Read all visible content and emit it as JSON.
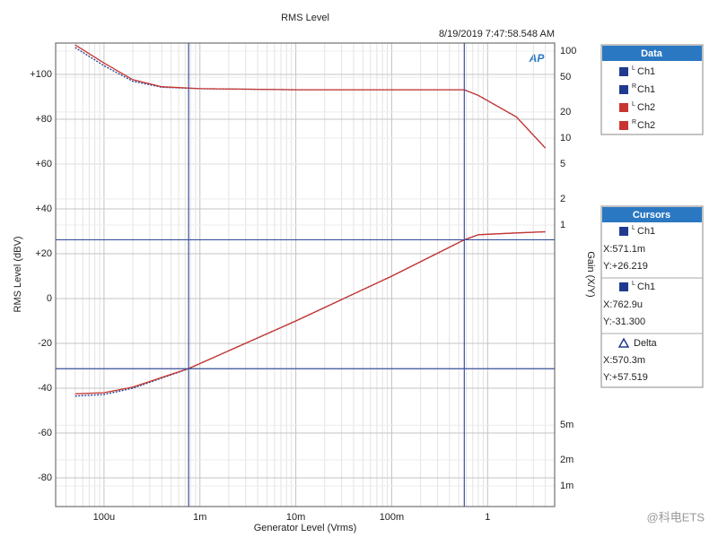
{
  "chart_data": {
    "type": "line",
    "title": "RMS Level",
    "timestamp": "8/19/2019 7:47:58.548 AM",
    "logo": "AP",
    "x_label": "Generator Level (Vrms)",
    "y_label": "RMS Level (dBV)",
    "y2_label": "Gain (X/Y)",
    "x_log": true,
    "y2_log": true,
    "grid": true,
    "xlim": [
      3.13e-05,
      5
    ],
    "ylim": [
      -92.8,
      114
    ],
    "y2lim": [
      0.00058,
      124
    ],
    "xticks": [
      {
        "value": 0.0001,
        "label": "100u"
      },
      {
        "value": 0.001,
        "label": "1m"
      },
      {
        "value": 0.01,
        "label": "10m"
      },
      {
        "value": 0.1,
        "label": "100m"
      },
      1
    ],
    "yticks": [
      -80,
      -60,
      -40,
      -20,
      0,
      {
        "value": 20,
        "label": "+20"
      },
      {
        "value": 40,
        "label": "+40"
      },
      {
        "value": 60,
        "label": "+60"
      },
      {
        "value": 80,
        "label": "+80"
      },
      {
        "value": 100,
        "label": "+100"
      }
    ],
    "y2ticks": [
      {
        "value": 0.001,
        "label": "1m"
      },
      {
        "value": 0.002,
        "label": "2m"
      },
      {
        "value": 0.005,
        "label": "5m"
      },
      1,
      2,
      5,
      10,
      20,
      50,
      100
    ],
    "legend_title": "Data",
    "series": [
      {
        "name": "Ch1",
        "channel": "L",
        "color": "#1f3a8f",
        "dash": true,
        "x": [
          5e-05,
          0.0001,
          0.0002,
          0.0004,
          0.000763,
          0.001,
          0.01,
          0.1,
          0.5711,
          0.8,
          2,
          4
        ],
        "values": [
          -43.5,
          -42.8,
          -40,
          -35.5,
          -31.3,
          -29,
          -10,
          10,
          26.2,
          28.5,
          29.3,
          29.8
        ]
      },
      {
        "name": "Ch1",
        "channel": "R",
        "color": "#1f3a8f",
        "dash": true,
        "axis": "y2",
        "x": [
          5e-05,
          0.0001,
          0.0002,
          0.0004,
          0.001,
          0.01,
          0.1,
          0.5711,
          0.8,
          2,
          4
        ],
        "values": [
          110,
          68,
          45,
          38.5,
          37,
          36,
          36,
          36,
          31,
          17.5,
          7.7
        ]
      },
      {
        "name": "Ch2",
        "channel": "L",
        "color": "#c8352f",
        "dash": false,
        "x": [
          5e-05,
          0.0001,
          0.0002,
          0.0004,
          0.000763,
          0.001,
          0.01,
          0.1,
          0.5711,
          0.8,
          2,
          4
        ],
        "values": [
          -42.5,
          -42,
          -39.5,
          -35.2,
          -31.2,
          -29,
          -10,
          10,
          26.2,
          28.5,
          29.3,
          29.8
        ]
      },
      {
        "name": "Ch2",
        "channel": "R",
        "color": "#c8352f",
        "dash": false,
        "axis": "y2",
        "x": [
          5e-05,
          0.0001,
          0.0002,
          0.0004,
          0.001,
          0.01,
          0.1,
          0.5711,
          0.8,
          2,
          4
        ],
        "values": [
          118,
          73,
          47,
          39,
          37,
          36,
          36,
          36,
          31,
          17.5,
          7.7
        ]
      }
    ],
    "cursors_title": "Cursors",
    "cursors": [
      {
        "name": "Ch1",
        "channel": "L",
        "color": "#1f3a8f",
        "x": {
          "value": 0.5711,
          "label": "X:571.1m"
        },
        "y": {
          "value": 26.219,
          "label": "Y:+26.219"
        }
      },
      {
        "name": "Ch1",
        "channel": "L",
        "color": "#1f3a8f",
        "x": {
          "value": 0.0007629,
          "label": "X:762.9u"
        },
        "y": {
          "value": -31.3,
          "label": "Y:-31.300"
        }
      }
    ],
    "delta": {
      "label": "Delta",
      "x": "X:570.3m",
      "y": "Y:+57.519"
    },
    "watermark": "@科电ETS"
  }
}
